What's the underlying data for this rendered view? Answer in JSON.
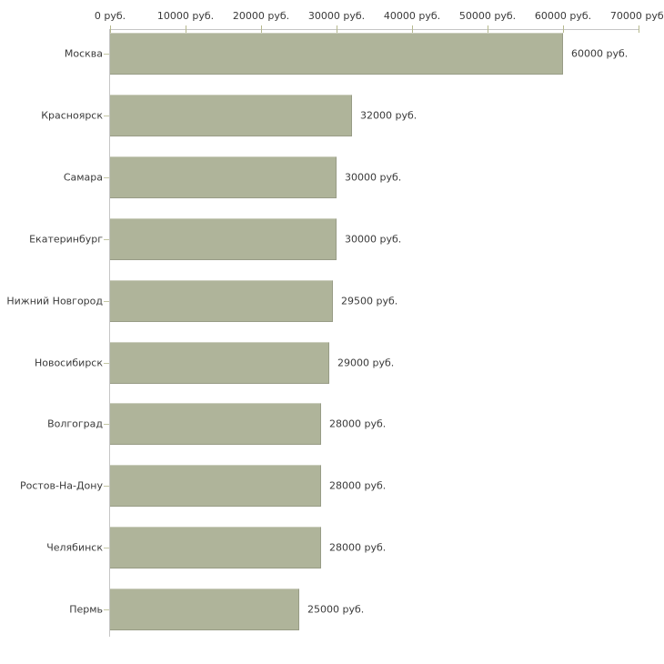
{
  "chart_data": {
    "type": "bar",
    "orientation": "horizontal",
    "title": "",
    "xlabel": "",
    "ylabel": "",
    "xlim": [
      0,
      70000
    ],
    "grid": false,
    "axis_position": "top",
    "categories": [
      "Москва",
      "Красноярск",
      "Самара",
      "Екатеринбург",
      "Нижний Новгород",
      "Новосибирск",
      "Волгоград",
      "Ростов-На-Дону",
      "Челябинск",
      "Пермь"
    ],
    "values": [
      60000,
      32000,
      30000,
      30000,
      29500,
      29000,
      28000,
      28000,
      28000,
      25000
    ],
    "value_labels": [
      "60000 руб.",
      "32000 руб.",
      "30000 руб.",
      "30000 руб.",
      "29500 руб.",
      "29000 руб.",
      "28000 руб.",
      "28000 руб.",
      "28000 руб.",
      "25000 руб."
    ],
    "x_ticks": [
      0,
      10000,
      20000,
      30000,
      40000,
      50000,
      60000,
      70000
    ],
    "x_tick_labels": [
      "0 руб.",
      "10000 руб.",
      "20000 руб.",
      "30000 руб.",
      "40000 руб.",
      "50000 руб.",
      "60000 руб.",
      "70000 руб."
    ],
    "colors": {
      "bar": "#afb49a",
      "axis_line": "#c6c6c6",
      "x_tick": "#b6b98e",
      "y_tick": "#c4c6a4",
      "text": "#3a3a3a"
    }
  }
}
